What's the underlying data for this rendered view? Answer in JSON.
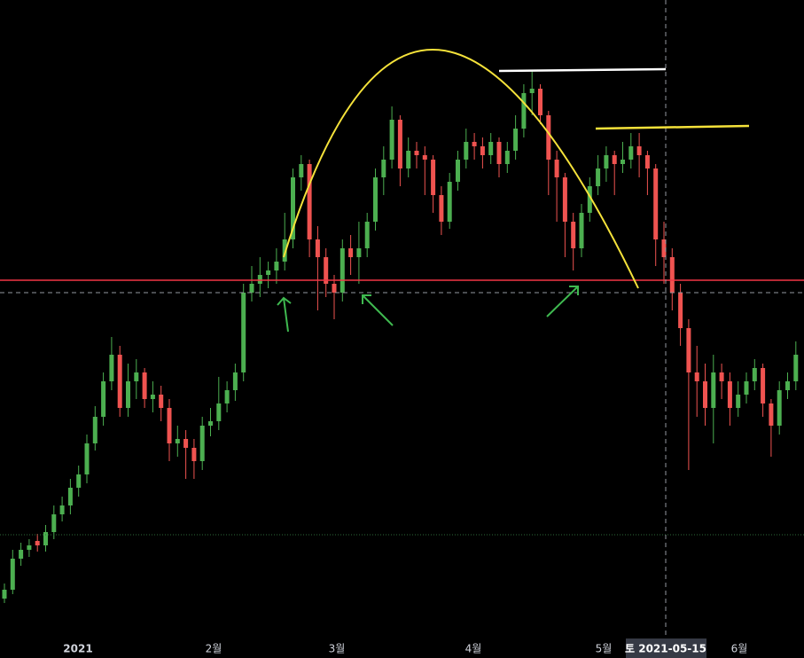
{
  "chart_data": {
    "type": "candlestick",
    "up_color": "#4caf50",
    "down_color": "#ef5350",
    "ylim": [
      0,
      720
    ],
    "time_labels": [
      "2021",
      "2월",
      "3월",
      "4월",
      "5월",
      "6월"
    ],
    "crosshair_label": "토 2021-05-15",
    "candles": [
      [
        45,
        62,
        40,
        55
      ],
      [
        55,
        100,
        50,
        90
      ],
      [
        90,
        108,
        82,
        100
      ],
      [
        100,
        112,
        92,
        105
      ],
      [
        110,
        118,
        98,
        105
      ],
      [
        105,
        128,
        98,
        120
      ],
      [
        120,
        150,
        112,
        140
      ],
      [
        140,
        160,
        132,
        150
      ],
      [
        150,
        180,
        140,
        170
      ],
      [
        170,
        195,
        160,
        185
      ],
      [
        185,
        230,
        175,
        220
      ],
      [
        220,
        262,
        212,
        250
      ],
      [
        250,
        300,
        240,
        290
      ],
      [
        290,
        340,
        280,
        320
      ],
      [
        320,
        330,
        250,
        260
      ],
      [
        260,
        310,
        250,
        290
      ],
      [
        290,
        315,
        270,
        300
      ],
      [
        300,
        305,
        260,
        270
      ],
      [
        270,
        290,
        255,
        275
      ],
      [
        275,
        285,
        245,
        260
      ],
      [
        260,
        270,
        200,
        220
      ],
      [
        220,
        240,
        205,
        225
      ],
      [
        225,
        235,
        180,
        215
      ],
      [
        215,
        225,
        180,
        200
      ],
      [
        200,
        250,
        190,
        240
      ],
      [
        240,
        260,
        228,
        245
      ],
      [
        245,
        295,
        235,
        265
      ],
      [
        265,
        290,
        255,
        280
      ],
      [
        280,
        310,
        268,
        300
      ],
      [
        300,
        400,
        290,
        390
      ],
      [
        390,
        420,
        380,
        400
      ],
      [
        400,
        430,
        385,
        410
      ],
      [
        410,
        425,
        395,
        415
      ],
      [
        415,
        440,
        400,
        425
      ],
      [
        425,
        480,
        415,
        450
      ],
      [
        450,
        530,
        440,
        520
      ],
      [
        520,
        545,
        505,
        535
      ],
      [
        535,
        540,
        430,
        450
      ],
      [
        450,
        465,
        370,
        430
      ],
      [
        430,
        440,
        385,
        400
      ],
      [
        400,
        410,
        360,
        390
      ],
      [
        390,
        450,
        380,
        440
      ],
      [
        440,
        455,
        410,
        430
      ],
      [
        430,
        470,
        400,
        440
      ],
      [
        440,
        480,
        430,
        470
      ],
      [
        470,
        530,
        460,
        520
      ],
      [
        520,
        555,
        500,
        540
      ],
      [
        540,
        600,
        530,
        585
      ],
      [
        585,
        590,
        510,
        530
      ],
      [
        530,
        565,
        520,
        550
      ],
      [
        550,
        560,
        530,
        545
      ],
      [
        545,
        555,
        500,
        540
      ],
      [
        540,
        545,
        480,
        500
      ],
      [
        500,
        510,
        455,
        470
      ],
      [
        470,
        525,
        462,
        515
      ],
      [
        515,
        550,
        505,
        540
      ],
      [
        540,
        575,
        530,
        560
      ],
      [
        560,
        570,
        540,
        555
      ],
      [
        555,
        565,
        530,
        545
      ],
      [
        545,
        570,
        535,
        560
      ],
      [
        560,
        565,
        520,
        535
      ],
      [
        535,
        560,
        525,
        550
      ],
      [
        550,
        590,
        540,
        575
      ],
      [
        575,
        625,
        565,
        615
      ],
      [
        615,
        640,
        590,
        620
      ],
      [
        620,
        625,
        580,
        590
      ],
      [
        590,
        595,
        500,
        540
      ],
      [
        540,
        550,
        470,
        520
      ],
      [
        520,
        525,
        430,
        470
      ],
      [
        470,
        480,
        415,
        440
      ],
      [
        440,
        490,
        430,
        480
      ],
      [
        480,
        520,
        470,
        510
      ],
      [
        510,
        545,
        500,
        530
      ],
      [
        530,
        555,
        515,
        545
      ],
      [
        545,
        550,
        500,
        535
      ],
      [
        535,
        560,
        525,
        540
      ],
      [
        540,
        570,
        530,
        555
      ],
      [
        555,
        570,
        520,
        545
      ],
      [
        545,
        550,
        500,
        530
      ],
      [
        530,
        535,
        420,
        450
      ],
      [
        450,
        470,
        400,
        430
      ],
      [
        430,
        440,
        370,
        390
      ],
      [
        390,
        400,
        330,
        350
      ],
      [
        350,
        360,
        190,
        300
      ],
      [
        300,
        330,
        250,
        290
      ],
      [
        290,
        310,
        240,
        260
      ],
      [
        260,
        320,
        220,
        300
      ],
      [
        300,
        310,
        270,
        290
      ],
      [
        290,
        300,
        240,
        260
      ],
      [
        260,
        290,
        250,
        275
      ],
      [
        275,
        300,
        265,
        290
      ],
      [
        290,
        315,
        280,
        305
      ],
      [
        305,
        310,
        250,
        265
      ],
      [
        265,
        270,
        205,
        240
      ],
      [
        240,
        290,
        230,
        280
      ],
      [
        280,
        300,
        270,
        290
      ],
      [
        290,
        335,
        280,
        320
      ]
    ]
  }
}
